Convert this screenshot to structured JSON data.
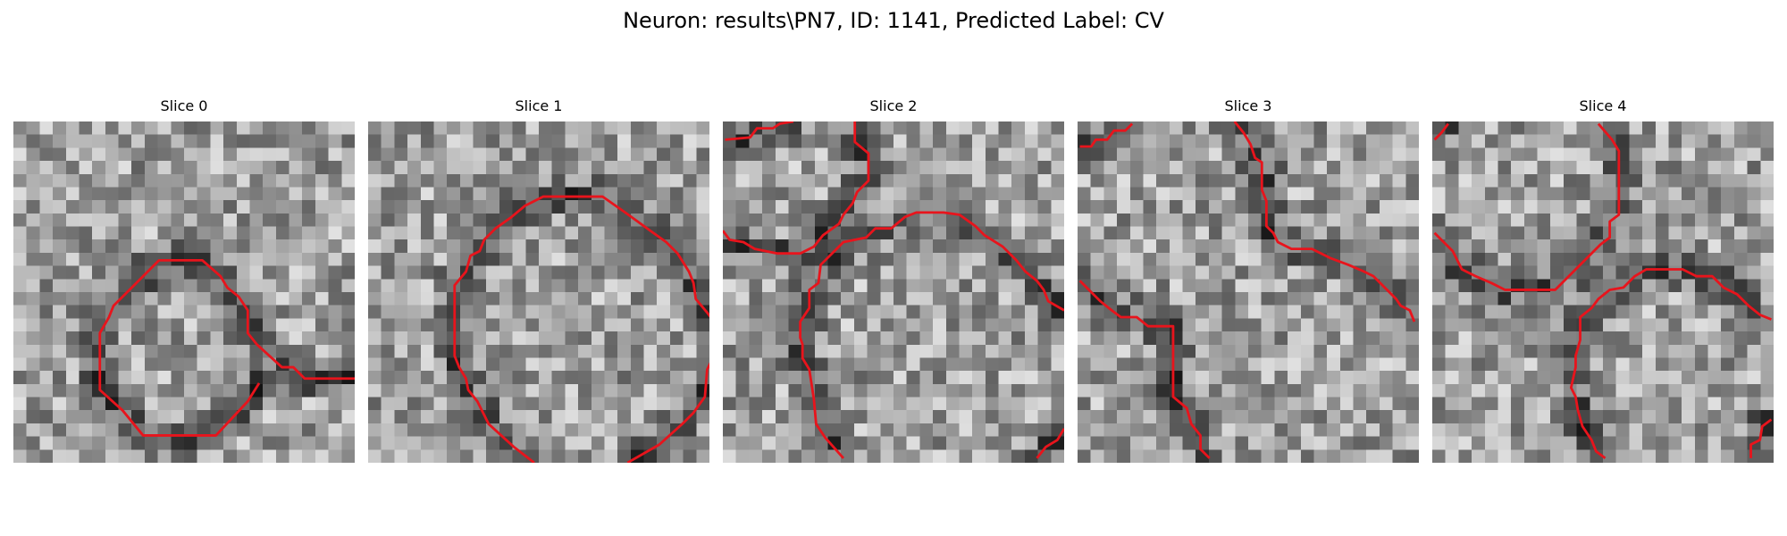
{
  "figure": {
    "title": "Neuron: results\\PN7, ID: 1141, Predicted Label: CV"
  },
  "contour_color": "#e8141c",
  "panels": [
    {
      "title": "Slice 0",
      "contours": [
        [
          [
            15,
            11.3
          ],
          [
            12.8,
            11.3
          ],
          [
            12.3,
            10.8
          ],
          [
            11.8,
            10.8
          ],
          [
            10.7,
            9.8
          ],
          [
            10.3,
            9.3
          ],
          [
            10.3,
            8.3
          ],
          [
            9.9,
            7.7
          ],
          [
            9.4,
            7.3
          ],
          [
            9.1,
            6.8
          ],
          [
            8.3,
            6.1
          ],
          [
            6.4,
            6.1
          ],
          [
            5.1,
            7.4
          ],
          [
            4.4,
            8.1
          ],
          [
            4.2,
            8.6
          ],
          [
            3.8,
            9.3
          ],
          [
            3.8,
            11.8
          ],
          [
            4.8,
            12.7
          ],
          [
            5.7,
            13.8
          ],
          [
            7.2,
            13.8
          ],
          [
            8.9,
            13.8
          ],
          [
            10.3,
            12.3
          ],
          [
            10.8,
            11.5
          ]
        ]
      ]
    },
    {
      "title": "Slice 1",
      "contours": [
        [
          [
            7.3,
            15
          ],
          [
            6.4,
            14.3
          ],
          [
            5.3,
            13.3
          ],
          [
            4.8,
            12.3
          ],
          [
            4.4,
            11.8
          ],
          [
            4.3,
            11.3
          ],
          [
            4,
            10.8
          ],
          [
            3.8,
            10.3
          ],
          [
            3.8,
            7.2
          ],
          [
            4.3,
            6.6
          ],
          [
            4.5,
            5.9
          ],
          [
            4.9,
            5.7
          ],
          [
            5.1,
            5.2
          ],
          [
            5.6,
            4.7
          ],
          [
            6.3,
            4.2
          ],
          [
            6.9,
            3.7
          ],
          [
            7.7,
            3.3
          ],
          [
            9,
            3.3
          ],
          [
            10.3,
            3.3
          ],
          [
            11.3,
            4
          ],
          [
            12.4,
            4.8
          ],
          [
            13.1,
            5.3
          ],
          [
            13.6,
            5.8
          ],
          [
            14.1,
            6.6
          ],
          [
            14.3,
            7.1
          ],
          [
            14.4,
            7.8
          ],
          [
            14.9,
            8.4
          ],
          [
            15.2,
            8.8
          ]
        ],
        [
          [
            15.2,
            10.3
          ],
          [
            14.9,
            10.9
          ],
          [
            14.8,
            12.1
          ],
          [
            14.3,
            12.8
          ],
          [
            13.8,
            13.3
          ],
          [
            12.8,
            14.2
          ],
          [
            11.4,
            15
          ]
        ]
      ]
    },
    {
      "title": "Slice 2",
      "contours": [
        [
          [
            0.1,
            0.8
          ],
          [
            1.2,
            0.7
          ],
          [
            1.5,
            0.3
          ],
          [
            2.2,
            0.3
          ],
          [
            2.5,
            0.1
          ],
          [
            3.1,
            0
          ]
        ],
        [
          [
            5.8,
            0
          ],
          [
            5.8,
            0.9
          ],
          [
            6.4,
            1.4
          ],
          [
            6.4,
            2.6
          ],
          [
            5.9,
            3.1
          ],
          [
            5.7,
            3.6
          ],
          [
            5.3,
            4.1
          ],
          [
            5.1,
            4.5
          ],
          [
            4.4,
            5
          ],
          [
            4,
            5.5
          ],
          [
            3.4,
            5.8
          ],
          [
            2.4,
            5.8
          ],
          [
            1.4,
            5.6
          ],
          [
            0.9,
            5.3
          ],
          [
            0.3,
            5.2
          ],
          [
            0,
            4.8
          ]
        ],
        [
          [
            5.3,
            14.8
          ],
          [
            4.5,
            13.9
          ],
          [
            4.1,
            13.3
          ],
          [
            4,
            12.2
          ],
          [
            3.8,
            10.9
          ],
          [
            3.5,
            10.4
          ],
          [
            3.5,
            9.8
          ],
          [
            3.4,
            9.5
          ],
          [
            3.4,
            8.8
          ],
          [
            3.8,
            8.2
          ],
          [
            3.8,
            7.4
          ],
          [
            4.2,
            7.1
          ],
          [
            4.3,
            6.3
          ],
          [
            4.8,
            5.8
          ],
          [
            5.3,
            5.3
          ],
          [
            6.3,
            5.1
          ],
          [
            6.7,
            4.7
          ],
          [
            7.4,
            4.7
          ],
          [
            8,
            4.2
          ],
          [
            8.5,
            4
          ],
          [
            9.7,
            4
          ],
          [
            10.4,
            4.1
          ],
          [
            11.1,
            4.6
          ],
          [
            11.5,
            5
          ],
          [
            12.3,
            5.5
          ],
          [
            12.9,
            6.1
          ],
          [
            13.3,
            6.6
          ],
          [
            13.8,
            7
          ],
          [
            14.1,
            7.4
          ],
          [
            14.3,
            7.9
          ],
          [
            15,
            8.3
          ]
        ],
        [
          [
            13.8,
            14.8
          ],
          [
            14.2,
            14.3
          ],
          [
            14.7,
            14
          ],
          [
            15,
            13.5
          ]
        ]
      ]
    },
    {
      "title": "Slice 3",
      "contours": [
        [
          [
            0.1,
            1.1
          ],
          [
            0.6,
            1.1
          ],
          [
            0.8,
            0.8
          ],
          [
            1.3,
            0.8
          ],
          [
            1.6,
            0.4
          ],
          [
            2.1,
            0.4
          ],
          [
            2.4,
            0.1
          ]
        ],
        [
          [
            6.9,
            0
          ],
          [
            7.3,
            0.5
          ],
          [
            7.6,
            1
          ],
          [
            7.8,
            1.6
          ],
          [
            8.1,
            1.8
          ],
          [
            8.1,
            3
          ],
          [
            8.3,
            3.5
          ],
          [
            8.3,
            4.6
          ],
          [
            8.6,
            4.9
          ],
          [
            8.8,
            5.3
          ],
          [
            9.4,
            5.6
          ],
          [
            10.3,
            5.6
          ],
          [
            11.1,
            6
          ],
          [
            11.9,
            6.3
          ],
          [
            12.6,
            6.6
          ],
          [
            13,
            6.8
          ],
          [
            13.5,
            7.3
          ],
          [
            14,
            7.8
          ],
          [
            14.2,
            8.1
          ],
          [
            14.6,
            8.3
          ],
          [
            14.8,
            8.8
          ]
        ],
        [
          [
            0.1,
            7
          ],
          [
            0.6,
            7.5
          ],
          [
            1,
            7.9
          ],
          [
            1.5,
            8.3
          ],
          [
            1.9,
            8.6
          ],
          [
            2.6,
            8.6
          ],
          [
            3.1,
            9
          ],
          [
            4.2,
            9
          ],
          [
            4.2,
            12.1
          ],
          [
            4.8,
            12.6
          ],
          [
            5,
            13.3
          ],
          [
            5.4,
            13.8
          ],
          [
            5.4,
            14.4
          ],
          [
            5.8,
            14.8
          ]
        ]
      ]
    },
    {
      "title": "Slice 4",
      "contours": [
        [
          [
            0.1,
            0.8
          ],
          [
            0.4,
            0.5
          ],
          [
            0.7,
            0.1
          ]
        ],
        [
          [
            7.3,
            0.1
          ],
          [
            7.9,
            0.8
          ],
          [
            8.2,
            1.3
          ],
          [
            8.2,
            4.1
          ],
          [
            7.8,
            4.4
          ],
          [
            7.8,
            5.1
          ],
          [
            7.4,
            5.4
          ],
          [
            6.9,
            5.9
          ],
          [
            6.4,
            6.4
          ],
          [
            5.9,
            6.9
          ],
          [
            5.4,
            7.4
          ],
          [
            4.4,
            7.4
          ],
          [
            3.2,
            7.4
          ],
          [
            2.6,
            7.1
          ],
          [
            1.9,
            6.8
          ],
          [
            1.3,
            6.5
          ],
          [
            0.9,
            5.7
          ],
          [
            0.5,
            5.3
          ],
          [
            0.1,
            4.9
          ]
        ],
        [
          [
            7.6,
            14.8
          ],
          [
            7.2,
            14.5
          ],
          [
            7,
            14
          ],
          [
            6.6,
            13.4
          ],
          [
            6.4,
            12.7
          ],
          [
            6.3,
            12.1
          ],
          [
            6.1,
            11.7
          ],
          [
            6.3,
            10.8
          ],
          [
            6.3,
            10.3
          ],
          [
            6.5,
            9.6
          ],
          [
            6.5,
            8.6
          ],
          [
            7,
            8.2
          ],
          [
            7.3,
            7.8
          ],
          [
            7.8,
            7.4
          ],
          [
            8.4,
            7.3
          ],
          [
            8.9,
            6.8
          ],
          [
            9.4,
            6.5
          ],
          [
            10.3,
            6.5
          ],
          [
            11,
            6.5
          ],
          [
            11.6,
            6.8
          ],
          [
            12.3,
            6.8
          ],
          [
            12.8,
            7.3
          ],
          [
            13.4,
            7.6
          ],
          [
            13.9,
            8.1
          ],
          [
            14.4,
            8.5
          ],
          [
            14.9,
            8.7
          ]
        ],
        [
          [
            14,
            14.8
          ],
          [
            14,
            14.2
          ],
          [
            14.4,
            14
          ],
          [
            14.5,
            13.4
          ],
          [
            14.9,
            13.1
          ]
        ]
      ]
    }
  ]
}
